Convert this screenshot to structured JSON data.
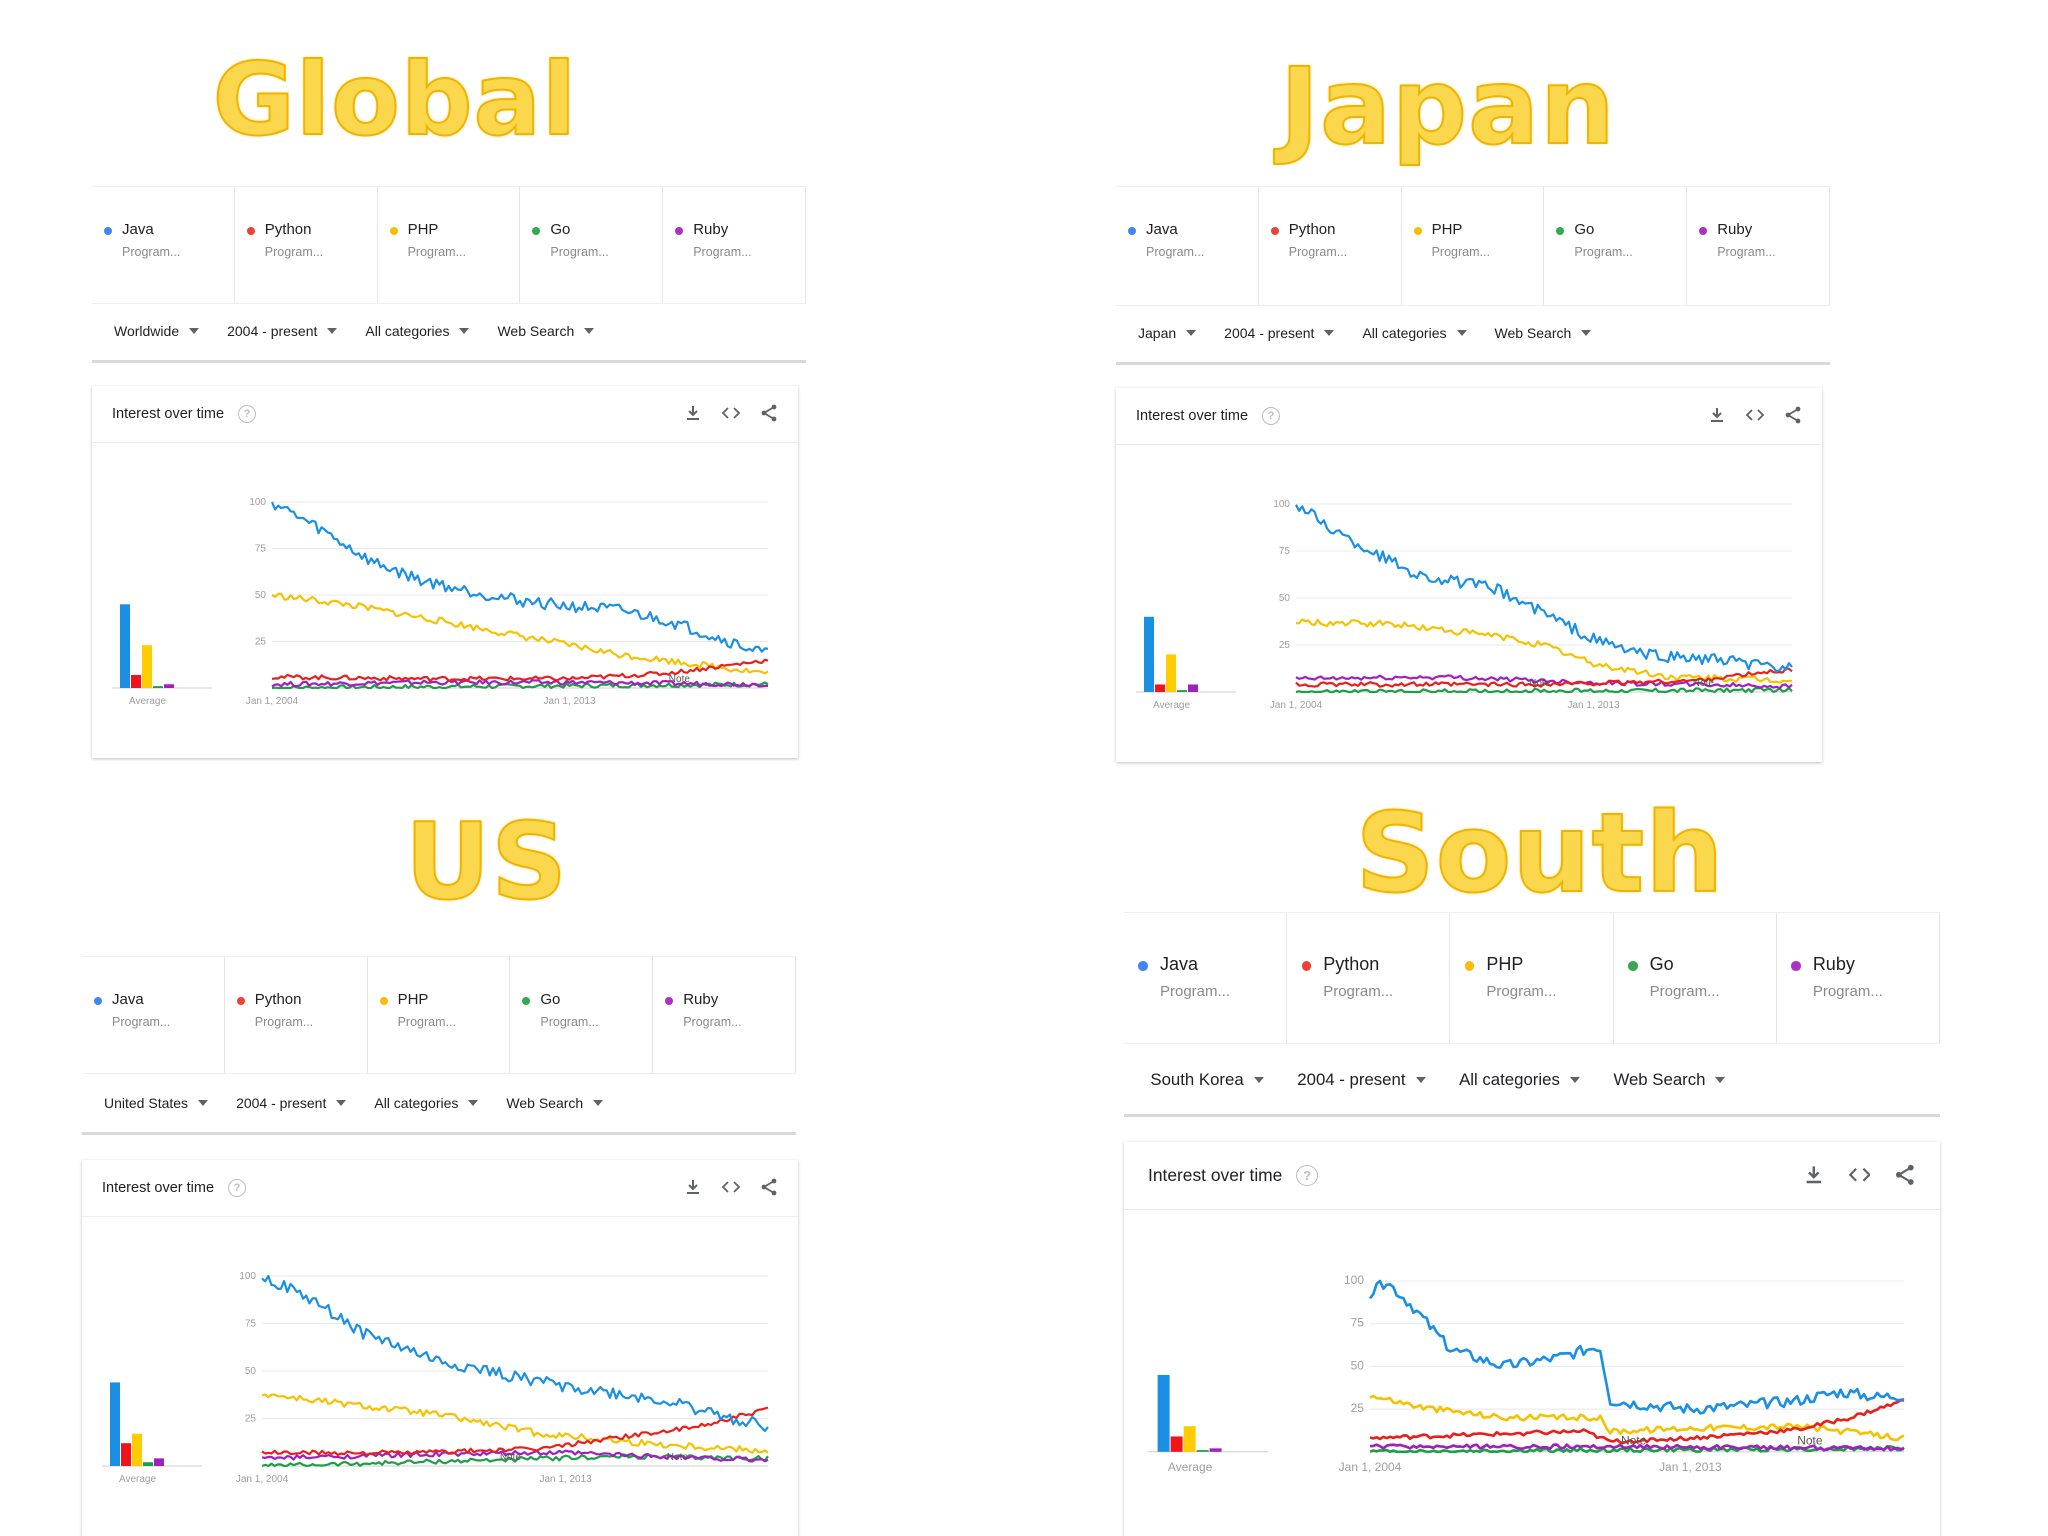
{
  "card_title": "Interest over time",
  "help_glyph": "?",
  "icons": {
    "download": "download-icon",
    "embed": "embed-code-icon",
    "share": "share-icon",
    "help": "help-icon",
    "dropdown": "chevron-down-icon"
  },
  "colors": {
    "Java": "#4285f4",
    "Python": "#ea4335",
    "PHP": "#fbbc04",
    "Go": "#34a853",
    "Ruby": "#ab30c4",
    "java_line": "#1a8fe3",
    "title_fill": "#fbd74e"
  },
  "terms": [
    {
      "name": "Java",
      "type": "Program..."
    },
    {
      "name": "Python",
      "type": "Program..."
    },
    {
      "name": "PHP",
      "type": "Program..."
    },
    {
      "name": "Go",
      "type": "Program..."
    },
    {
      "name": "Ruby",
      "type": "Program..."
    }
  ],
  "panels": [
    {
      "id": "global",
      "title": "Global",
      "filters": [
        "Worldwide",
        "2004 - present",
        "All categories",
        "Web Search"
      ]
    },
    {
      "id": "japan",
      "title": "Japan",
      "filters": [
        "Japan",
        "2004 - present",
        "All categories",
        "Web Search"
      ]
    },
    {
      "id": "us",
      "title": "US",
      "filters": [
        "United States",
        "2004 - present",
        "All categories",
        "Web Search"
      ]
    },
    {
      "id": "korea",
      "title": "South Korea",
      "filters": [
        "South Korea",
        "2004 - present",
        "All categories",
        "Web Search"
      ]
    }
  ],
  "chart_data": [
    {
      "panel": "Global",
      "type": "line",
      "title": "Interest over time",
      "x_tick_labels": [
        "Jan 1, 2004",
        "Jan 1, 2013"
      ],
      "y_ticks": [
        25,
        50,
        75,
        100
      ],
      "ylim": [
        0,
        100
      ],
      "average_label": "Average",
      "note_labels": [
        "Note"
      ],
      "averages": {
        "Java": 45,
        "Python": 7,
        "PHP": 23,
        "Go": 1,
        "Ruby": 2
      },
      "series": [
        {
          "name": "Java",
          "keypoints": [
            [
              0,
              100
            ],
            [
              0.1,
              85
            ],
            [
              0.2,
              68
            ],
            [
              0.3,
              58
            ],
            [
              0.4,
              52
            ],
            [
              0.5,
              47
            ],
            [
              0.6,
              44
            ],
            [
              0.7,
              42
            ],
            [
              0.8,
              36
            ],
            [
              0.9,
              27
            ],
            [
              1,
              18
            ]
          ]
        },
        {
          "name": "Python",
          "keypoints": [
            [
              0,
              6
            ],
            [
              0.3,
              5
            ],
            [
              0.6,
              5
            ],
            [
              0.8,
              8
            ],
            [
              1,
              15
            ]
          ]
        },
        {
          "name": "PHP",
          "keypoints": [
            [
              0,
              50
            ],
            [
              0.15,
              45
            ],
            [
              0.3,
              38
            ],
            [
              0.5,
              28
            ],
            [
              0.7,
              18
            ],
            [
              0.85,
              13
            ],
            [
              1,
              8
            ]
          ]
        },
        {
          "name": "Go",
          "keypoints": [
            [
              0,
              0
            ],
            [
              0.5,
              1
            ],
            [
              1,
              2
            ]
          ]
        },
        {
          "name": "Ruby",
          "keypoints": [
            [
              0,
              2
            ],
            [
              0.3,
              3
            ],
            [
              0.6,
              3
            ],
            [
              1,
              2
            ]
          ]
        }
      ]
    },
    {
      "panel": "Japan",
      "type": "line",
      "title": "Interest over time",
      "x_tick_labels": [
        "Jan 1, 2004",
        "Jan 1, 2013"
      ],
      "y_ticks": [
        25,
        50,
        75,
        100
      ],
      "ylim": [
        0,
        100
      ],
      "average_label": "Average",
      "note_labels": [
        "Note",
        "Note"
      ],
      "averages": {
        "Java": 40,
        "Python": 4,
        "PHP": 20,
        "Go": 1,
        "Ruby": 4
      },
      "series": [
        {
          "name": "Java",
          "keypoints": [
            [
              0,
              100
            ],
            [
              0.1,
              82
            ],
            [
              0.25,
              62
            ],
            [
              0.4,
              55
            ],
            [
              0.5,
              42
            ],
            [
              0.6,
              28
            ],
            [
              0.7,
              20
            ],
            [
              0.85,
              17
            ],
            [
              1,
              12
            ]
          ]
        },
        {
          "name": "Python",
          "keypoints": [
            [
              0,
              4
            ],
            [
              0.5,
              4
            ],
            [
              0.8,
              6
            ],
            [
              1,
              12
            ]
          ]
        },
        {
          "name": "PHP",
          "keypoints": [
            [
              0,
              37
            ],
            [
              0.2,
              36
            ],
            [
              0.4,
              30
            ],
            [
              0.5,
              25
            ],
            [
              0.6,
              15
            ],
            [
              0.75,
              8
            ],
            [
              1,
              6
            ]
          ]
        },
        {
          "name": "Go",
          "keypoints": [
            [
              0,
              0
            ],
            [
              1,
              1
            ]
          ]
        },
        {
          "name": "Ruby",
          "keypoints": [
            [
              0,
              7
            ],
            [
              0.3,
              8
            ],
            [
              0.6,
              5
            ],
            [
              1,
              3
            ]
          ]
        }
      ]
    },
    {
      "panel": "US",
      "type": "line",
      "title": "Interest over time",
      "x_tick_labels": [
        "Jan 1, 2004",
        "Jan 1, 2013"
      ],
      "y_ticks": [
        25,
        50,
        75,
        100
      ],
      "ylim": [
        0,
        100
      ],
      "average_label": "Average",
      "note_labels": [
        "Note",
        "Note"
      ],
      "averages": {
        "Java": 44,
        "Python": 12,
        "PHP": 17,
        "Go": 2,
        "Ruby": 4
      },
      "series": [
        {
          "name": "Java",
          "keypoints": [
            [
              0,
              100
            ],
            [
              0.1,
              87
            ],
            [
              0.2,
              70
            ],
            [
              0.35,
              55
            ],
            [
              0.5,
              47
            ],
            [
              0.6,
              42
            ],
            [
              0.7,
              38
            ],
            [
              0.8,
              34
            ],
            [
              0.9,
              27
            ],
            [
              1,
              21
            ]
          ]
        },
        {
          "name": "Python",
          "keypoints": [
            [
              0,
              7
            ],
            [
              0.3,
              7
            ],
            [
              0.55,
              9
            ],
            [
              0.7,
              15
            ],
            [
              0.85,
              20
            ],
            [
              1,
              30
            ]
          ]
        },
        {
          "name": "PHP",
          "keypoints": [
            [
              0,
              38
            ],
            [
              0.15,
              33
            ],
            [
              0.35,
              27
            ],
            [
              0.55,
              17
            ],
            [
              0.75,
              12
            ],
            [
              1,
              8
            ]
          ]
        },
        {
          "name": "Go",
          "keypoints": [
            [
              0,
              0
            ],
            [
              0.3,
              2
            ],
            [
              0.7,
              5
            ],
            [
              1,
              4
            ]
          ]
        },
        {
          "name": "Ruby",
          "keypoints": [
            [
              0,
              4
            ],
            [
              0.3,
              6
            ],
            [
              0.6,
              7
            ],
            [
              1,
              3
            ]
          ]
        }
      ]
    },
    {
      "panel": "South Korea",
      "type": "line",
      "title": "Interest over time",
      "x_tick_labels": [
        "Jan 1, 2004",
        "Jan 1, 2013"
      ],
      "y_ticks": [
        25,
        50,
        75,
        100
      ],
      "ylim": [
        0,
        100
      ],
      "average_label": "Average",
      "note_labels": [
        "Note",
        "Note"
      ],
      "averages": {
        "Java": 45,
        "Python": 9,
        "PHP": 15,
        "Go": 1,
        "Ruby": 2
      },
      "series": [
        {
          "name": "Java",
          "keypoints": [
            [
              0,
              92
            ],
            [
              0.03,
              100
            ],
            [
              0.08,
              85
            ],
            [
              0.15,
              60
            ],
            [
              0.25,
              50
            ],
            [
              0.35,
              55
            ],
            [
              0.43,
              62
            ],
            [
              0.45,
              30
            ],
            [
              0.5,
              28
            ],
            [
              0.6,
              25
            ],
            [
              0.7,
              27
            ],
            [
              0.8,
              30
            ],
            [
              0.88,
              35
            ],
            [
              0.95,
              32
            ],
            [
              1,
              33
            ]
          ]
        },
        {
          "name": "Python",
          "keypoints": [
            [
              0,
              8
            ],
            [
              0.2,
              10
            ],
            [
              0.4,
              12
            ],
            [
              0.45,
              6
            ],
            [
              0.6,
              8
            ],
            [
              0.8,
              13
            ],
            [
              0.9,
              20
            ],
            [
              1,
              30
            ]
          ]
        },
        {
          "name": "PHP",
          "keypoints": [
            [
              0,
              33
            ],
            [
              0.1,
              26
            ],
            [
              0.25,
              20
            ],
            [
              0.43,
              20
            ],
            [
              0.45,
              12
            ],
            [
              0.6,
              14
            ],
            [
              0.8,
              15
            ],
            [
              1,
              8
            ]
          ]
        },
        {
          "name": "Go",
          "keypoints": [
            [
              0,
              0
            ],
            [
              0.5,
              1
            ],
            [
              1,
              2
            ]
          ]
        },
        {
          "name": "Ruby",
          "keypoints": [
            [
              0,
              3
            ],
            [
              0.5,
              3
            ],
            [
              1,
              2
            ]
          ]
        }
      ]
    }
  ]
}
